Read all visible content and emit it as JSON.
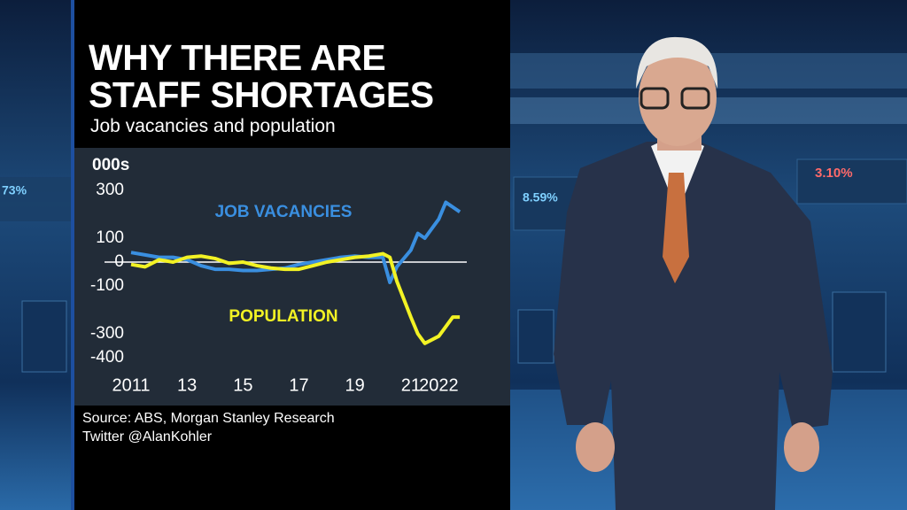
{
  "chart_data": {
    "type": "line",
    "title": "WHY THERE ARE STAFF SHORTAGES",
    "subtitle": "Job vacancies and population",
    "y_label": "000s",
    "x": [
      2011,
      2011.5,
      2012,
      2012.5,
      2013,
      2013.5,
      2014,
      2014.5,
      2015,
      2015.5,
      2016,
      2016.5,
      2017,
      2017.5,
      2018,
      2018.5,
      2019,
      2019.5,
      2020,
      2020.25,
      2020.5,
      2021,
      2021.25,
      2021.5,
      2022,
      2022.25,
      2022.5,
      2022.75
    ],
    "series": [
      {
        "name": "JOB VACANCIES",
        "color": "#3a8fe0",
        "values": [
          40,
          30,
          20,
          20,
          10,
          -15,
          -30,
          -30,
          -35,
          -35,
          -30,
          -25,
          -10,
          0,
          10,
          20,
          25,
          20,
          20,
          -85,
          -20,
          50,
          120,
          100,
          180,
          250,
          230,
          210
        ]
      },
      {
        "name": "POPULATION",
        "color": "#f2f224",
        "values": [
          -10,
          -20,
          10,
          0,
          20,
          25,
          15,
          -5,
          0,
          -15,
          -25,
          -30,
          -30,
          -15,
          0,
          10,
          20,
          25,
          35,
          20,
          -80,
          -230,
          -300,
          -340,
          -310,
          -270,
          -230,
          -230
        ]
      }
    ],
    "xlim": [
      2011,
      2023
    ],
    "xticks": [
      2011,
      {
        "value": 2013,
        "label": "13"
      },
      {
        "value": 2015,
        "label": "15"
      },
      {
        "value": 2017,
        "label": "17"
      },
      {
        "value": 2019,
        "label": "19"
      },
      {
        "value": 2021,
        "label": "21"
      },
      2022
    ],
    "ylim": [
      -400,
      300
    ],
    "yticks": [
      300,
      100,
      0,
      -100,
      -300,
      -400
    ],
    "source": "Source: ABS, Morgan Stanley Research",
    "credit": "Twitter @AlanKohler"
  },
  "studio_screens": [
    "73%",
    "8.59%",
    "3.10%"
  ]
}
